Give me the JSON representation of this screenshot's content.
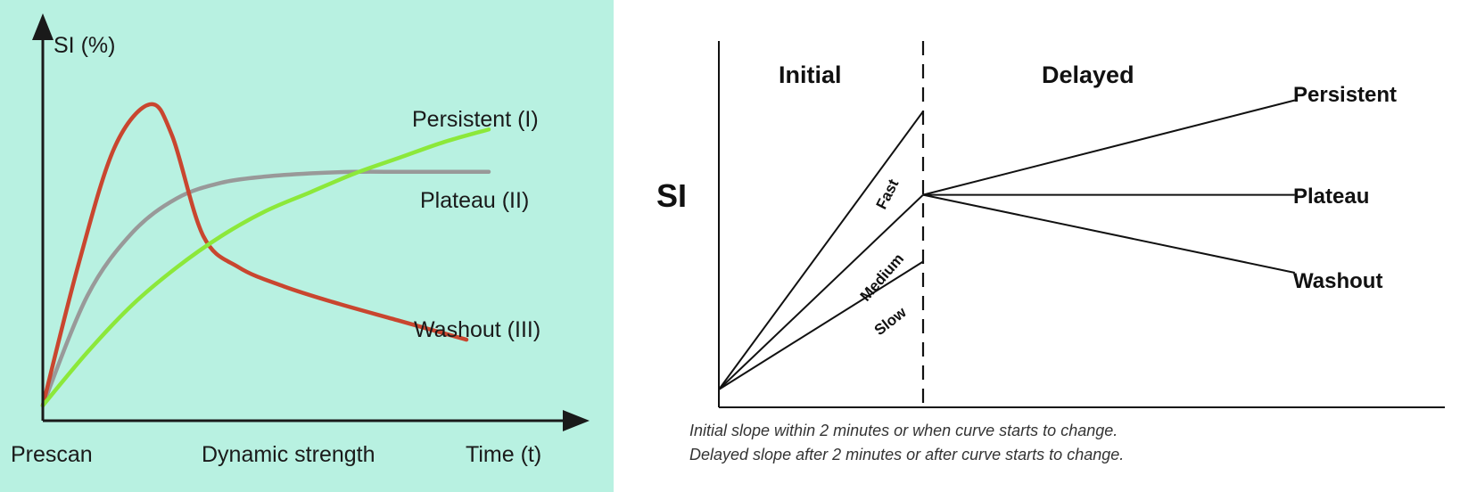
{
  "chart_data": [
    {
      "type": "line",
      "ylabel": "SI (%)",
      "xlabel": "Time (t)",
      "x_ticks": [
        "Prescan",
        "Dynamic strength"
      ],
      "axis_ticks": "none",
      "grid": false,
      "series": [
        {
          "name": "Persistent (I)",
          "color": "#8ce83a",
          "x": [
            0,
            1,
            2,
            3,
            4,
            5,
            6,
            7,
            8,
            9,
            10
          ],
          "y": [
            0,
            17,
            32,
            44,
            54,
            62,
            68,
            74,
            79,
            84,
            88
          ]
        },
        {
          "name": "Plateau (II)",
          "color": "#999999",
          "x": [
            0,
            1,
            2,
            3,
            4,
            5,
            6,
            7,
            8,
            9,
            10
          ],
          "y": [
            0,
            35,
            55,
            66,
            71,
            73,
            74,
            74.5,
            74.5,
            74.5,
            74.5
          ]
        },
        {
          "name": "Washout (III)",
          "color": "#c9462f",
          "x": [
            0,
            0.8,
            1.6,
            2.4,
            2.9,
            3.6,
            4.4,
            5.4,
            6.5,
            8,
            9.5
          ],
          "y": [
            0,
            45,
            82,
            96,
            86,
            54,
            44,
            38,
            33,
            27,
            21
          ]
        }
      ]
    },
    {
      "type": "line",
      "ylabel": "SI",
      "phases": [
        "Initial",
        "Delayed"
      ],
      "divider": "dashed",
      "grid": false,
      "series": [
        {
          "name": "Fast",
          "group": "initial",
          "x": [
            0,
            1
          ],
          "y": [
            0,
            1.0
          ]
        },
        {
          "name": "Medium",
          "group": "initial",
          "x": [
            0,
            1
          ],
          "y": [
            0,
            0.7
          ]
        },
        {
          "name": "Slow",
          "group": "initial",
          "x": [
            0,
            1
          ],
          "y": [
            0,
            0.46
          ]
        },
        {
          "name": "Persistent",
          "group": "delayed",
          "x": [
            1,
            2.82
          ],
          "y": [
            0.7,
            1.04
          ]
        },
        {
          "name": "Plateau",
          "group": "delayed",
          "x": [
            1,
            2.82
          ],
          "y": [
            0.7,
            0.7
          ]
        },
        {
          "name": "Washout",
          "group": "delayed",
          "x": [
            1,
            2.82
          ],
          "y": [
            0.7,
            0.42
          ]
        }
      ]
    }
  ],
  "footnotes": [
    "Initial slope within 2 minutes or when curve starts to change.",
    "Delayed slope after 2 minutes or after curve starts to change."
  ]
}
